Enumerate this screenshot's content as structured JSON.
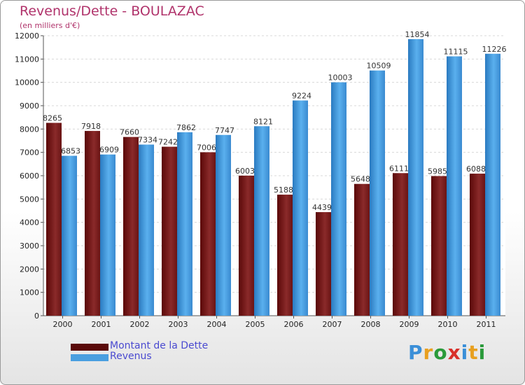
{
  "chart_data": {
    "type": "bar",
    "title": "Revenus/Dette - BOULAZAC",
    "subtitle": "(en milliers d'€)",
    "categories": [
      "2000",
      "2001",
      "2002",
      "2003",
      "2004",
      "2005",
      "2006",
      "2007",
      "2008",
      "2009",
      "2010",
      "2011"
    ],
    "series": [
      {
        "name": "Montant de la Dette",
        "color": "#7a1a1a",
        "values": [
          8265,
          7918,
          7660,
          7242,
          7006,
          6003,
          5188,
          4439,
          5648,
          6111,
          5985,
          6088
        ]
      },
      {
        "name": "Revenus",
        "color": "#4a9fe0",
        "values": [
          6853,
          6909,
          7334,
          7862,
          7747,
          8121,
          9224,
          10003,
          10509,
          11854,
          11115,
          11226
        ]
      }
    ],
    "ylim": [
      0,
      12000
    ],
    "yticks": [
      0,
      1000,
      2000,
      3000,
      4000,
      5000,
      6000,
      7000,
      8000,
      9000,
      10000,
      11000,
      12000
    ],
    "grid": true,
    "legend": "bottom-left"
  },
  "logo": {
    "text": "Proxiti",
    "colors": [
      "#3a8fd8",
      "#e8a020",
      "#2a9a3a",
      "#d8302a",
      "#3a8fd8",
      "#e8a020",
      "#2a9a3a"
    ]
  }
}
